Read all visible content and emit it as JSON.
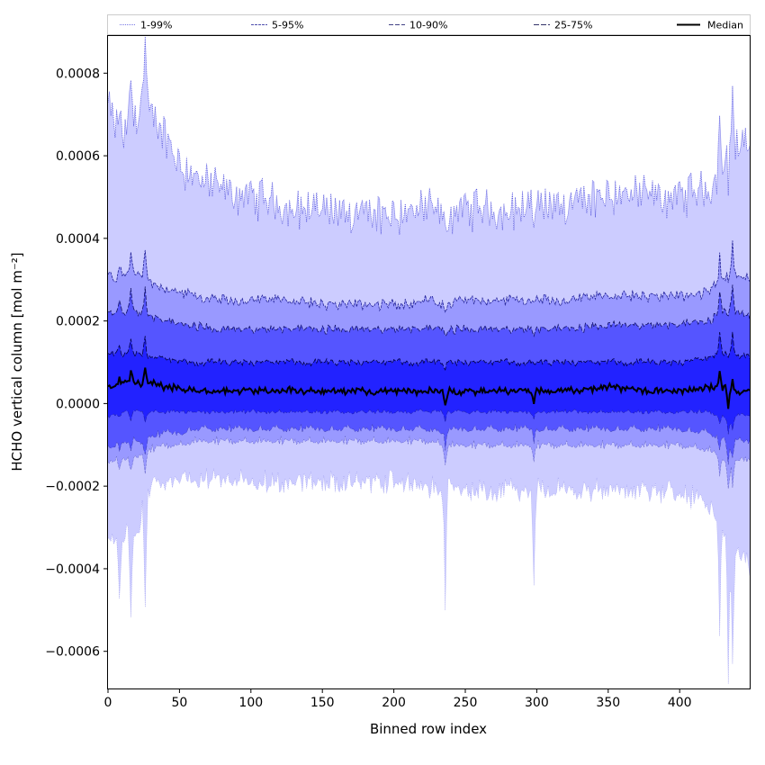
{
  "chart_data": {
    "type": "area",
    "title": "",
    "xlabel": "Binned row index",
    "ylabel": "HCHO vertical column [mol m⁻²]",
    "xlim": [
      0,
      449
    ],
    "ylim": [
      -0.00069,
      0.00089
    ],
    "x_ticks": [
      0,
      50,
      100,
      150,
      200,
      250,
      300,
      350,
      400
    ],
    "x_tick_labels": [
      "0",
      "50",
      "100",
      "150",
      "200",
      "250",
      "300",
      "350",
      "400"
    ],
    "y_ticks": [
      -0.0006,
      -0.0004,
      -0.0002,
      0,
      0.0002,
      0.0004,
      0.0006,
      0.0008
    ],
    "y_tick_labels": [
      "−0.0006",
      "−0.0004",
      "−0.0002",
      "0.0000",
      "0.0002",
      "0.0004",
      "0.0006",
      "0.0008"
    ],
    "grid": false,
    "legend_position": "top",
    "legend": [
      "1-99%",
      "5-95%",
      "10-90%",
      "25-75%",
      "Median"
    ],
    "bands": [
      {
        "name": "1-99%",
        "color": "#ccccff",
        "line": "#5555dd",
        "dash": "1,1"
      },
      {
        "name": "5-95%",
        "color": "#9999ff",
        "line": "#222299",
        "dash": "3,1"
      },
      {
        "name": "10-90%",
        "color": "#5555ff",
        "line": "#111166",
        "dash": "5,2"
      },
      {
        "name": "25-75%",
        "color": "#2222ff",
        "line": "#000044",
        "dash": "6,2"
      }
    ],
    "median": {
      "name": "Median",
      "color": "#000000"
    },
    "x_knots": [
      0,
      5,
      10,
      15,
      20,
      25,
      30,
      40,
      50,
      60,
      75,
      100,
      125,
      150,
      175,
      200,
      225,
      235,
      245,
      260,
      280,
      300,
      320,
      350,
      380,
      400,
      420,
      430,
      435,
      440,
      449
    ],
    "series": [
      {
        "name": "1-99% upper",
        "values": [
          0.00072,
          0.00067,
          0.00064,
          0.00068,
          0.0007,
          0.00075,
          0.0007,
          0.00065,
          0.00058,
          0.00055,
          0.00052,
          0.0005,
          0.00048,
          0.00046,
          0.00046,
          0.00046,
          0.00047,
          0.00045,
          0.00047,
          0.00047,
          0.00047,
          0.00047,
          0.00048,
          0.00051,
          0.0005,
          0.0005,
          0.00052,
          0.00058,
          0.00062,
          0.00062,
          0.00062
        ]
      },
      {
        "name": "5-95% upper",
        "values": [
          0.00031,
          0.0003,
          0.00031,
          0.00032,
          0.00031,
          0.00031,
          0.00029,
          0.00028,
          0.00027,
          0.00026,
          0.00025,
          0.00025,
          0.00025,
          0.00024,
          0.00024,
          0.00024,
          0.00025,
          0.00024,
          0.00025,
          0.00025,
          0.00025,
          0.00025,
          0.00025,
          0.00026,
          0.00026,
          0.00026,
          0.00027,
          0.0003,
          0.00033,
          0.00031,
          0.0003
        ]
      },
      {
        "name": "10-90% upper",
        "values": [
          0.00022,
          0.00022,
          0.00022,
          0.00023,
          0.00022,
          0.00022,
          0.00021,
          0.0002,
          0.00019,
          0.00019,
          0.00018,
          0.00018,
          0.00018,
          0.00018,
          0.00018,
          0.00018,
          0.00018,
          0.00018,
          0.00018,
          0.00018,
          0.00018,
          0.00018,
          0.00018,
          0.00019,
          0.00019,
          0.00019,
          0.0002,
          0.00022,
          0.00024,
          0.00022,
          0.00021
        ]
      },
      {
        "name": "25-75% upper",
        "values": [
          0.00012,
          0.00012,
          0.00012,
          0.00012,
          0.00012,
          0.00012,
          0.00011,
          0.00011,
          0.0001,
          0.0001,
          0.0001,
          0.0001,
          0.0001,
          0.0001,
          0.0001,
          0.0001,
          0.0001,
          0.0001,
          0.0001,
          0.0001,
          0.0001,
          0.0001,
          0.0001,
          0.0001,
          0.0001,
          0.0001,
          0.00011,
          0.00012,
          0.00013,
          0.00012,
          0.00011
        ]
      },
      {
        "name": "Median",
        "values": [
          4e-05,
          4e-05,
          5e-05,
          5e-05,
          5e-05,
          5e-05,
          5e-05,
          4e-05,
          4e-05,
          3e-05,
          3e-05,
          3e-05,
          3e-05,
          3e-05,
          3e-05,
          3e-05,
          3e-05,
          3e-05,
          3e-05,
          3e-05,
          3e-05,
          3e-05,
          3e-05,
          4e-05,
          3e-05,
          3e-05,
          4e-05,
          4e-05,
          3e-05,
          3e-05,
          3e-05
        ]
      },
      {
        "name": "25-75% lower",
        "values": [
          -3e-05,
          -3e-05,
          -2e-05,
          -2e-05,
          -2e-05,
          -2e-05,
          -2e-05,
          -2e-05,
          -2e-05,
          -2e-05,
          -2e-05,
          -2e-05,
          -2e-05,
          -2e-05,
          -2e-05,
          -2e-05,
          -2e-05,
          -2e-05,
          -2e-05,
          -2e-05,
          -2e-05,
          -2e-05,
          -2e-05,
          -2e-05,
          -2e-05,
          -2e-05,
          -2e-05,
          -3e-05,
          -4e-05,
          -3e-05,
          -3e-05
        ]
      },
      {
        "name": "10-90% lower",
        "values": [
          -0.0001,
          -0.0001,
          -9e-05,
          -9e-05,
          -9e-05,
          -9e-05,
          -8e-05,
          -7e-05,
          -7e-05,
          -6e-05,
          -6e-05,
          -6e-05,
          -6e-05,
          -6e-05,
          -6e-05,
          -6e-05,
          -6e-05,
          -7e-05,
          -6e-05,
          -6e-05,
          -6e-05,
          -6e-05,
          -6e-05,
          -6e-05,
          -6e-05,
          -6e-05,
          -7e-05,
          -8e-05,
          -0.0001,
          -9e-05,
          -9e-05
        ]
      },
      {
        "name": "5-95% lower",
        "values": [
          -0.00014,
          -0.00014,
          -0.00013,
          -0.00013,
          -0.00013,
          -0.00012,
          -0.00011,
          -0.0001,
          -0.0001,
          -9e-05,
          -9e-05,
          -9e-05,
          -9e-05,
          -9e-05,
          -9e-05,
          -9e-05,
          -9e-05,
          -0.0001,
          -0.0001,
          -0.0001,
          -0.0001,
          -0.0001,
          -0.0001,
          -0.0001,
          -0.0001,
          -0.0001,
          -0.00011,
          -0.00013,
          -0.00015,
          -0.00014,
          -0.00013
        ]
      },
      {
        "name": "1-99% lower",
        "values": [
          -0.00032,
          -0.00034,
          -0.00033,
          -0.0003,
          -0.00032,
          -0.00024,
          -0.0002,
          -0.00019,
          -0.00018,
          -0.00018,
          -0.00018,
          -0.00019,
          -0.00019,
          -0.00019,
          -0.00019,
          -0.00019,
          -0.0002,
          -0.00021,
          -0.00021,
          -0.00021,
          -0.00021,
          -0.00021,
          -0.00021,
          -0.00021,
          -0.00021,
          -0.00022,
          -0.00024,
          -0.0003,
          -0.00035,
          -0.00037,
          -0.00038
        ]
      }
    ],
    "spikes": [
      {
        "x": 8,
        "amp": 0.6
      },
      {
        "x": 16,
        "amp": 1.0
      },
      {
        "x": 26,
        "amp": 1.2
      },
      {
        "x": 236,
        "amp": -1.2
      },
      {
        "x": 298,
        "amp": -1.0
      },
      {
        "x": 428,
        "amp": 1.2
      },
      {
        "x": 434,
        "amp": -1.6
      },
      {
        "x": 437,
        "amp": 1.2
      }
    ]
  }
}
